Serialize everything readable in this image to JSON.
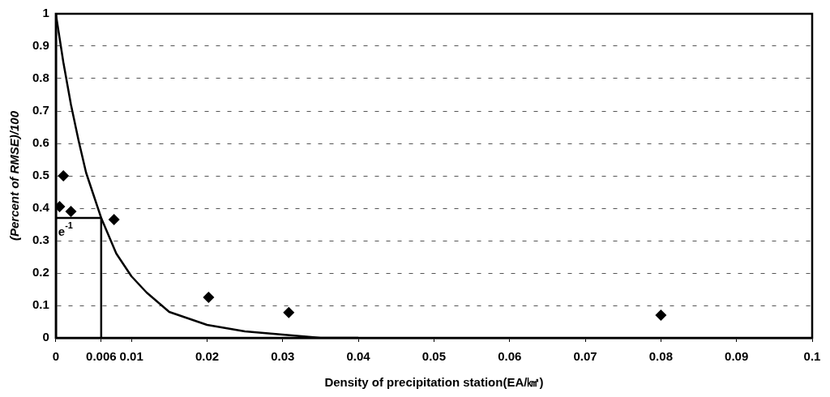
{
  "chart_data": {
    "type": "scatter",
    "xlabel": "Density of precipitation station(EA/㎢)",
    "ylabel": "(Percent of RMSE)/100",
    "xlim": [
      0,
      0.1
    ],
    "xticks": [
      0,
      {
        "value": 0.006,
        "label": "0.006"
      },
      0.01,
      0.02,
      0.03,
      0.04,
      0.05,
      0.06,
      0.07,
      0.08,
      0.09,
      0.1
    ],
    "ylim": [
      0,
      1
    ],
    "yticks": [
      0,
      0.1,
      0.2,
      0.3,
      0.4,
      0.5,
      0.6,
      0.7,
      0.8,
      0.9,
      1
    ],
    "grid": "y",
    "legend": false,
    "series": [
      {
        "type": "scatter",
        "marker": "diamond",
        "color": "#000000",
        "x": [
          0.0005,
          0.001,
          0.002,
          0.0077,
          0.0202,
          0.0308,
          0.08
        ],
        "values": [
          0.405,
          0.5,
          0.39,
          0.365,
          0.125,
          0.078,
          0.07
        ]
      },
      {
        "type": "line",
        "marker": "none",
        "color": "#000000",
        "x": [
          0,
          0.001,
          0.002,
          0.003,
          0.004,
          0.005,
          0.006,
          0.008,
          0.01,
          0.012,
          0.015,
          0.02,
          0.025,
          0.03,
          0.035,
          0.04
        ],
        "values": [
          1,
          0.85,
          0.72,
          0.61,
          0.51,
          0.44,
          0.37,
          0.26,
          0.19,
          0.14,
          0.08,
          0.04,
          0.02,
          0.01,
          0,
          0
        ]
      },
      {
        "type": "line",
        "marker": "none",
        "color": "#000000",
        "x": [
          0,
          0.006,
          0.006
        ],
        "values": [
          0.37,
          0.37,
          0
        ]
      }
    ],
    "annotations": [
      {
        "text": "e$^{-1}$",
        "x": 0,
        "y": 0.37
      }
    ]
  }
}
